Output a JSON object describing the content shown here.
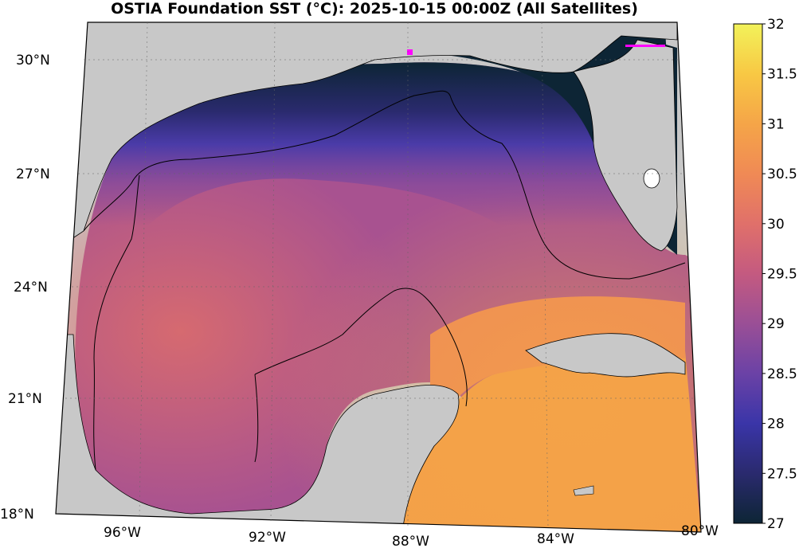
{
  "title": "OSTIA Foundation SST (°C): 2025-10-15 00:00Z (All Satellites)",
  "lat_labels": [
    "30°N",
    "27°N",
    "24°N",
    "21°N",
    "18°N"
  ],
  "lon_labels": [
    "96°W",
    "92°W",
    "88°W",
    "84°W",
    "80°W"
  ],
  "colorbar": {
    "min": 27,
    "max": 32,
    "ticks": [
      "27",
      "27.5",
      "28",
      "28.5",
      "29",
      "29.5",
      "30",
      "30.5",
      "31",
      "31.5",
      "32"
    ],
    "colors": [
      "#0d2535",
      "#2a2a6e",
      "#3a35a8",
      "#6b42a6",
      "#9a4f96",
      "#c45a80",
      "#e0706a",
      "#f08a55",
      "#f5a548",
      "#f8c844",
      "#f2f25a"
    ]
  },
  "land_color": "#c8c8c8"
}
